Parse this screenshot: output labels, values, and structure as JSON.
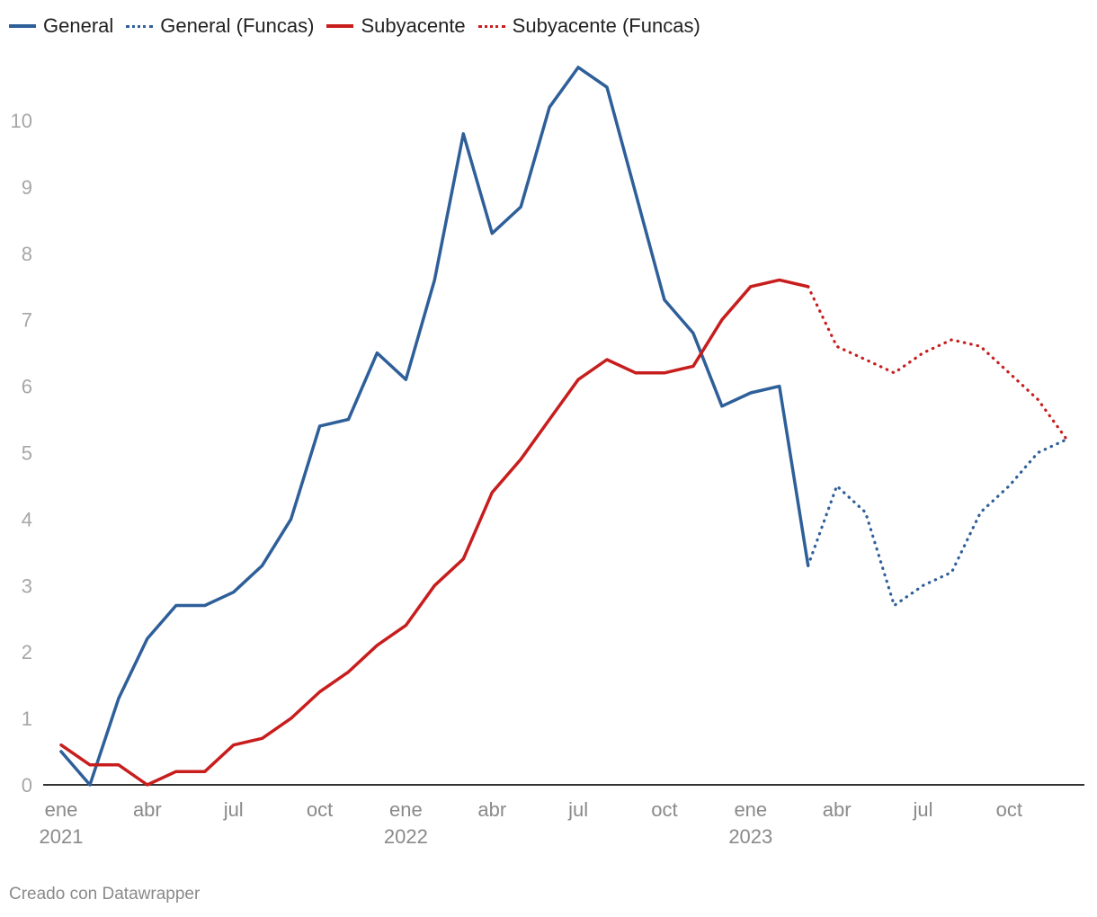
{
  "chart_data": {
    "type": "line",
    "title": "",
    "xlabel": "",
    "ylabel": "",
    "ylim": [
      0,
      10.8
    ],
    "y_ticks": [
      0,
      1,
      2,
      3,
      4,
      5,
      6,
      7,
      8,
      9,
      10
    ],
    "x_ticks": [
      {
        "index": 0,
        "label": "ene",
        "year": "2021"
      },
      {
        "index": 3,
        "label": "abr",
        "year": ""
      },
      {
        "index": 6,
        "label": "jul",
        "year": ""
      },
      {
        "index": 9,
        "label": "oct",
        "year": ""
      },
      {
        "index": 12,
        "label": "ene",
        "year": "2022"
      },
      {
        "index": 15,
        "label": "abr",
        "year": ""
      },
      {
        "index": 18,
        "label": "jul",
        "year": ""
      },
      {
        "index": 21,
        "label": "oct",
        "year": ""
      },
      {
        "index": 24,
        "label": "ene",
        "year": "2023"
      },
      {
        "index": 27,
        "label": "abr",
        "year": ""
      },
      {
        "index": 30,
        "label": "jul",
        "year": ""
      },
      {
        "index": 33,
        "label": "oct",
        "year": ""
      }
    ],
    "x_months": [
      "2021-01",
      "2021-02",
      "2021-03",
      "2021-04",
      "2021-05",
      "2021-06",
      "2021-07",
      "2021-08",
      "2021-09",
      "2021-10",
      "2021-11",
      "2021-12",
      "2022-01",
      "2022-02",
      "2022-03",
      "2022-04",
      "2022-05",
      "2022-06",
      "2022-07",
      "2022-08",
      "2022-09",
      "2022-10",
      "2022-11",
      "2022-12",
      "2023-01",
      "2023-02",
      "2023-03",
      "2023-04",
      "2023-05",
      "2023-06",
      "2023-07",
      "2023-08",
      "2023-09",
      "2023-10",
      "2023-11",
      "2023-12"
    ],
    "series": [
      {
        "name": "General",
        "style": "solid",
        "color": "#2e5f99",
        "start_index": 0,
        "values": [
          0.5,
          0.0,
          1.3,
          2.2,
          2.7,
          2.7,
          2.9,
          3.3,
          4.0,
          5.4,
          5.5,
          6.5,
          6.1,
          7.6,
          9.8,
          8.3,
          8.7,
          10.2,
          10.8,
          10.5,
          8.9,
          7.3,
          6.8,
          5.7,
          5.9,
          6.0,
          3.3
        ]
      },
      {
        "name": "General (Funcas)",
        "style": "dotted",
        "color": "#2e5f99",
        "start_index": 26,
        "values": [
          3.3,
          4.5,
          4.1,
          2.7,
          3.0,
          3.2,
          4.1,
          4.5,
          5.0,
          5.2
        ]
      },
      {
        "name": "Subyacente",
        "style": "solid",
        "color": "#c71e1d",
        "start_index": 0,
        "values": [
          0.6,
          0.3,
          0.3,
          0.0,
          0.2,
          0.2,
          0.6,
          0.7,
          1.0,
          1.4,
          1.7,
          2.1,
          2.4,
          3.0,
          3.4,
          4.4,
          4.9,
          5.5,
          6.1,
          6.4,
          6.2,
          6.2,
          6.3,
          7.0,
          7.5,
          7.6,
          7.5
        ]
      },
      {
        "name": "Subyacente (Funcas)",
        "style": "dotted",
        "color": "#c71e1d",
        "start_index": 26,
        "values": [
          7.5,
          6.6,
          6.4,
          6.2,
          6.5,
          6.7,
          6.6,
          6.2,
          5.8,
          5.2
        ]
      }
    ],
    "legend": "top-left"
  },
  "legend_labels": {
    "general": "General",
    "general_funcas": "General (Funcas)",
    "subyacente": "Subyacente",
    "subyacente_funcas": "Subyacente (Funcas)"
  },
  "colors": {
    "blue": "#2e5f99",
    "red": "#c71e1d",
    "tick": "#a6a6a6",
    "axis": "#333333"
  },
  "footer": "Creado con Datawrapper"
}
